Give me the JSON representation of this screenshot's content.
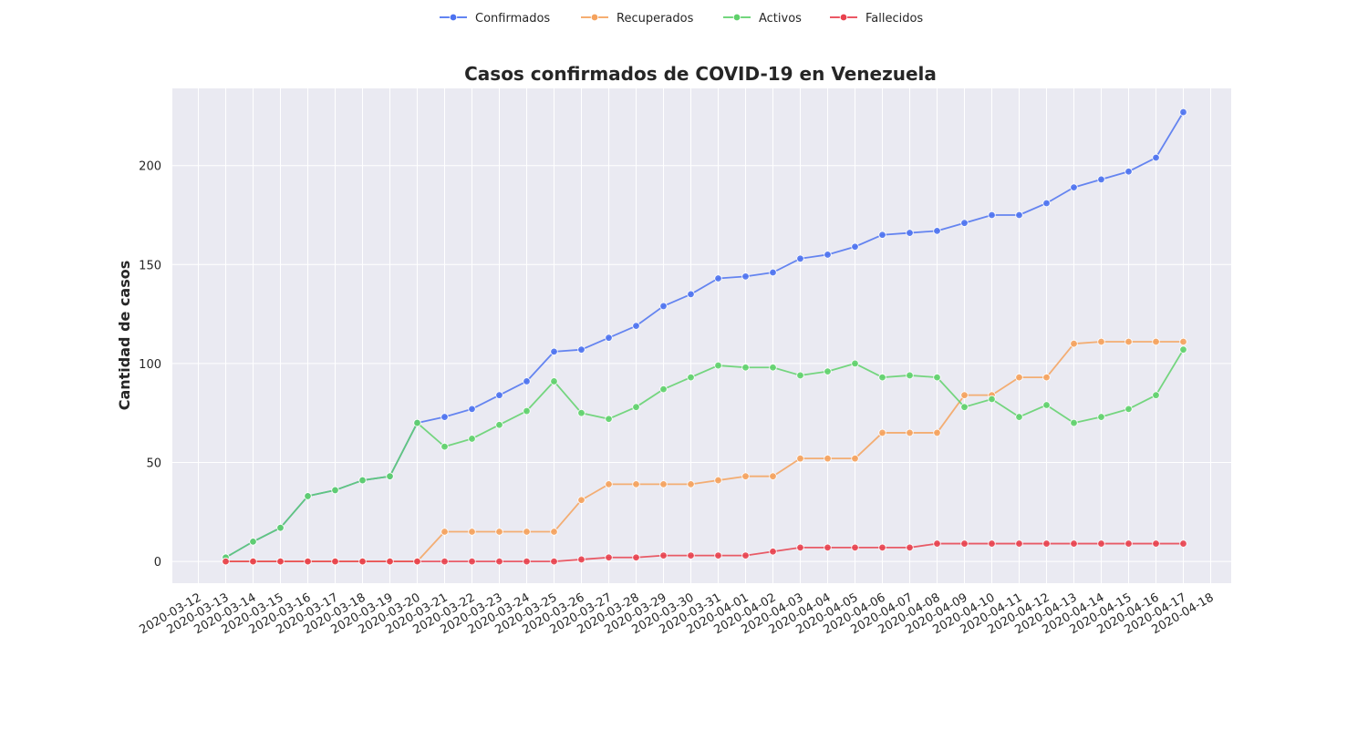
{
  "chart_data": {
    "type": "line",
    "title": "Casos confirmados de COVID-19 en Venezuela",
    "xlabel": "",
    "ylabel": "Cantidad de casos",
    "grid": true,
    "legend_position": "top-center",
    "xlim": [
      "2020-03-12",
      "2020-04-18"
    ],
    "ylim": [
      -11,
      239
    ],
    "y_ticks": [
      0,
      50,
      100,
      150,
      200
    ],
    "x_ticks": [
      "2020-03-12",
      "2020-03-13",
      "2020-03-14",
      "2020-03-15",
      "2020-03-16",
      "2020-03-17",
      "2020-03-18",
      "2020-03-19",
      "2020-03-20",
      "2020-03-21",
      "2020-03-22",
      "2020-03-23",
      "2020-03-24",
      "2020-03-25",
      "2020-03-26",
      "2020-03-27",
      "2020-03-28",
      "2020-03-29",
      "2020-03-30",
      "2020-03-31",
      "2020-04-01",
      "2020-04-02",
      "2020-04-03",
      "2020-04-04",
      "2020-04-05",
      "2020-04-06",
      "2020-04-07",
      "2020-04-08",
      "2020-04-09",
      "2020-04-10",
      "2020-04-11",
      "2020-04-12",
      "2020-04-13",
      "2020-04-14",
      "2020-04-15",
      "2020-04-16",
      "2020-04-17",
      "2020-04-18"
    ],
    "x": [
      "2020-03-13",
      "2020-03-14",
      "2020-03-15",
      "2020-03-16",
      "2020-03-17",
      "2020-03-18",
      "2020-03-19",
      "2020-03-20",
      "2020-03-21",
      "2020-03-22",
      "2020-03-23",
      "2020-03-24",
      "2020-03-25",
      "2020-03-26",
      "2020-03-27",
      "2020-03-28",
      "2020-03-29",
      "2020-03-30",
      "2020-03-31",
      "2020-04-01",
      "2020-04-02",
      "2020-04-03",
      "2020-04-04",
      "2020-04-05",
      "2020-04-06",
      "2020-04-07",
      "2020-04-08",
      "2020-04-09",
      "2020-04-10",
      "2020-04-11",
      "2020-04-12",
      "2020-04-13",
      "2020-04-14",
      "2020-04-15",
      "2020-04-16",
      "2020-04-17"
    ],
    "series": [
      {
        "name": "Confirmados",
        "color": "#4c72f0",
        "values": [
          2,
          10,
          17,
          33,
          36,
          41,
          43,
          70,
          73,
          77,
          84,
          91,
          106,
          107,
          113,
          119,
          129,
          135,
          143,
          144,
          146,
          153,
          155,
          159,
          165,
          166,
          167,
          171,
          175,
          175,
          181,
          189,
          193,
          197,
          204,
          227
        ]
      },
      {
        "name": "Recuperados",
        "color": "#f5a25d",
        "values": [
          0,
          0,
          0,
          0,
          0,
          0,
          0,
          0,
          15,
          15,
          15,
          15,
          15,
          31,
          39,
          39,
          39,
          39,
          41,
          43,
          43,
          52,
          52,
          52,
          65,
          65,
          65,
          84,
          84,
          93,
          93,
          110,
          111,
          111,
          111,
          111
        ]
      },
      {
        "name": "Activos",
        "color": "#5fd16b",
        "values": [
          2,
          10,
          17,
          33,
          36,
          41,
          43,
          70,
          58,
          62,
          69,
          76,
          91,
          75,
          72,
          78,
          87,
          93,
          99,
          98,
          98,
          94,
          96,
          100,
          93,
          94,
          93,
          78,
          82,
          73,
          79,
          70,
          73,
          77,
          84,
          107
        ]
      },
      {
        "name": "Fallecidos",
        "color": "#e8414e",
        "values": [
          0,
          0,
          0,
          0,
          0,
          0,
          0,
          0,
          0,
          0,
          0,
          0,
          0,
          1,
          2,
          2,
          3,
          3,
          3,
          3,
          5,
          7,
          7,
          7,
          7,
          7,
          9,
          9,
          9,
          9,
          9,
          9,
          9,
          9,
          9,
          9
        ]
      }
    ]
  }
}
